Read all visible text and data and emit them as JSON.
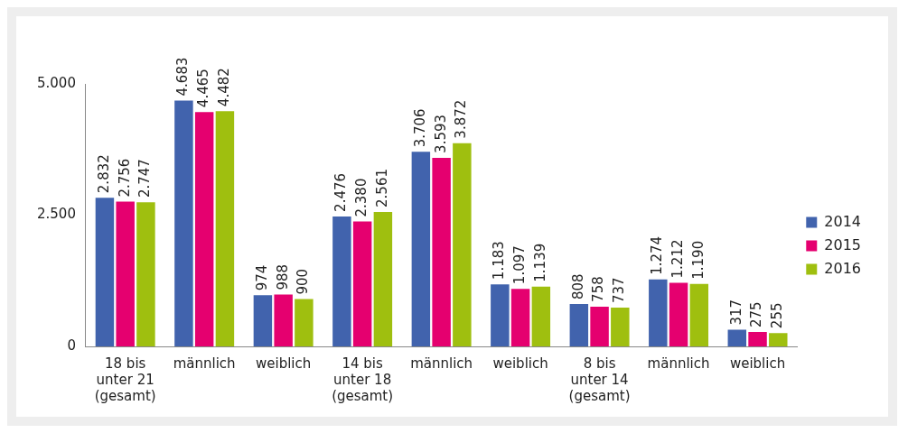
{
  "chart_data": {
    "type": "bar",
    "categories": [
      "18 bis\nunter 21\n(gesamt)",
      "männlich",
      "weiblich",
      "14 bis\nunter 18\n(gesamt)",
      "männlich",
      "weiblich",
      "8 bis\nunter 14\n(gesamt)",
      "männlich",
      "weiblich"
    ],
    "series": [
      {
        "name": "2014",
        "color": "#4163ad",
        "values": [
          2832,
          4683,
          974,
          2476,
          3706,
          1183,
          808,
          1274,
          317
        ],
        "value_labels": [
          "2.832",
          "4.683",
          "974",
          "2.476",
          "3.706",
          "1.183",
          "808",
          "1.274",
          "317"
        ]
      },
      {
        "name": "2015",
        "color": "#e5006f",
        "values": [
          2756,
          4465,
          988,
          2380,
          3593,
          1097,
          758,
          1212,
          275
        ],
        "value_labels": [
          "2.756",
          "4.465",
          "988",
          "2.380",
          "3.593",
          "1.097",
          "758",
          "1.212",
          "275"
        ]
      },
      {
        "name": "2016",
        "color": "#9fbf0f",
        "values": [
          2747,
          4482,
          900,
          2561,
          3872,
          1139,
          737,
          1190,
          255
        ],
        "value_labels": [
          "2.747",
          "4.482",
          "900",
          "2.561",
          "3.872",
          "1.139",
          "737",
          "1.190",
          "255"
        ]
      }
    ],
    "ylim": [
      0,
      5000
    ],
    "yticks": [
      {
        "value": 0,
        "label": "0"
      },
      {
        "value": 2500,
        "label": "2.500"
      },
      {
        "value": 5000,
        "label": "5.000"
      }
    ],
    "grid": false,
    "legend": "right"
  }
}
